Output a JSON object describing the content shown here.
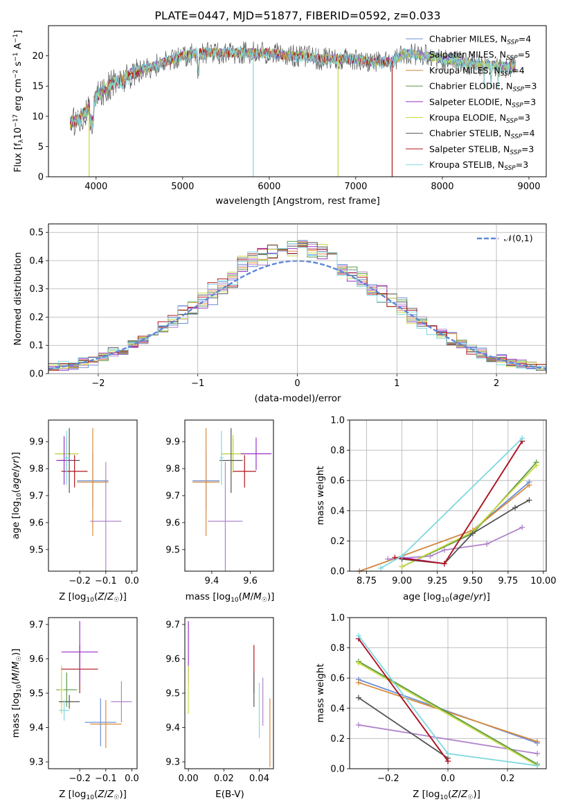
{
  "title": "PLATE=0447, MJD=51877, FIBERID=0592, z=0.033",
  "colors": {
    "chabrier_miles": "#6a8fd6",
    "salpeter_miles": "#b083c9",
    "kroupa_miles": "#d98a3a",
    "chabrier_elodie": "#5a9a48",
    "salpeter_elodie": "#9b30c8",
    "kroupa_elodie": "#c8d840",
    "chabrier_stelib": "#555555",
    "salpeter_stelib": "#b0151a",
    "kroupa_stelib": "#7fd8e0",
    "normal_curve": "#5b87d8"
  },
  "legend_spectrum": [
    {
      "base": "Chabrier MILES, N",
      "sub": "SSP",
      "tail": "=4",
      "color_key": "chabrier_miles"
    },
    {
      "base": "Salpeter MILES, N",
      "sub": "SSP",
      "tail": "=5",
      "color_key": "salpeter_miles"
    },
    {
      "base": "Kroupa MILES, N",
      "sub": "SSP",
      "tail": "=4",
      "color_key": "kroupa_miles"
    },
    {
      "base": "Chabrier ELODIE, N",
      "sub": "SSP",
      "tail": "=3",
      "color_key": "chabrier_elodie"
    },
    {
      "base": "Salpeter ELODIE, N",
      "sub": "SSP",
      "tail": "=3",
      "color_key": "salpeter_elodie"
    },
    {
      "base": "Kroupa ELODIE, N",
      "sub": "SSP",
      "tail": "=3",
      "color_key": "kroupa_elodie"
    },
    {
      "base": "Chabrier STELIB, N",
      "sub": "SSP",
      "tail": "=4",
      "color_key": "chabrier_stelib"
    },
    {
      "base": "Salpeter STELIB, N",
      "sub": "SSP",
      "tail": "=3",
      "color_key": "salpeter_stelib"
    },
    {
      "base": "Kroupa STELIB, N",
      "sub": "SSP",
      "tail": "=3",
      "color_key": "kroupa_stelib"
    }
  ],
  "legend_hist": {
    "label": "𝒩(0,1)"
  },
  "chart_data": [
    {
      "id": "spectrum",
      "type": "line",
      "xlabel": "wavelength [Angstrom, rest frame]",
      "ylabel": "Flux [f",
      "xlim": [
        3450,
        9200
      ],
      "ylim": [
        0,
        25
      ],
      "xticks": [
        4000,
        5000,
        6000,
        7000,
        8000,
        9000
      ],
      "yticks": [
        0,
        5,
        10,
        15,
        20
      ],
      "grid": false,
      "legend_position": "upper right",
      "continuum": {
        "x": [
          3700,
          3800,
          3900,
          4000,
          4100,
          4200,
          4300,
          4400,
          4500,
          4600,
          4700,
          4800,
          4900,
          5000,
          5200,
          5400,
          5600,
          5800,
          6000,
          6200,
          6400,
          6600,
          6800,
          7000,
          7200,
          7400,
          7600,
          7800,
          8000,
          8200,
          8400,
          8600,
          8850
        ],
        "y": [
          9,
          9.5,
          11,
          13,
          14.5,
          15.5,
          16,
          17,
          17.5,
          18,
          18.5,
          19,
          19.5,
          20,
          20.5,
          20.5,
          20.5,
          20.5,
          20.5,
          20,
          20,
          19.5,
          19.5,
          19.5,
          19,
          19,
          20.5,
          20,
          19.5,
          19,
          18.5,
          18.5,
          18
        ]
      },
      "spikes": [
        {
          "x": 3920,
          "y": 0,
          "color_key": "kroupa_elodie"
        },
        {
          "x": 5815,
          "y": 0,
          "color_key": "kroupa_stelib"
        },
        {
          "x": 6795,
          "y": 0,
          "color_key": "kroupa_elodie"
        },
        {
          "x": 7420,
          "y": 0,
          "color_key": "salpeter_stelib"
        }
      ]
    },
    {
      "id": "residual_hist",
      "type": "step",
      "xlabel": "(data-model)/error",
      "ylabel": "Normed distribution",
      "xlim": [
        -2.5,
        2.5
      ],
      "ylim": [
        0,
        0.53
      ],
      "xticks": [
        -2,
        -1,
        0,
        1,
        2
      ],
      "yticks": [
        0.0,
        0.1,
        0.2,
        0.3,
        0.4,
        0.5
      ],
      "grid": true,
      "bin_edges_start": -2.5,
      "bin_width": 0.1
    },
    {
      "id": "age_vs_Z",
      "type": "errorbar",
      "xlabel": "Z [log10(Z/Z☉)]",
      "ylabel": "age [log10(age/yr)]",
      "xlim": [
        -0.32,
        0.02
      ],
      "ylim": [
        9.42,
        9.98
      ],
      "xticks": [
        -0.2,
        -0.1,
        0.0
      ],
      "yticks": [
        9.5,
        9.6,
        9.7,
        9.8,
        9.9
      ],
      "grid": false,
      "points": [
        {
          "x": -0.25,
          "xerr": 0.045,
          "y": 9.855,
          "yerr": 0.06,
          "color_key": "chabrier_elodie"
        },
        {
          "x": -0.25,
          "xerr": 0.045,
          "y": 9.855,
          "yerr": 0.07,
          "color_key": "kroupa_elodie"
        },
        {
          "x": -0.24,
          "xerr": 0.04,
          "y": 9.83,
          "yerr": 0.12,
          "color_key": "chabrier_stelib"
        },
        {
          "x": -0.22,
          "xerr": 0.05,
          "y": 9.79,
          "yerr": 0.06,
          "color_key": "salpeter_stelib"
        },
        {
          "x": -0.26,
          "xerr": 0.03,
          "y": 9.83,
          "yerr": 0.09,
          "color_key": "salpeter_elodie"
        },
        {
          "x": -0.15,
          "xerr": 0.06,
          "y": 9.755,
          "yerr": 0.1,
          "color_key": "chabrier_miles"
        },
        {
          "x": -0.15,
          "xerr": 0.06,
          "y": 9.75,
          "yerr": 0.2,
          "color_key": "kroupa_miles"
        },
        {
          "x": -0.1,
          "xerr": 0.06,
          "y": 9.605,
          "yerr": 0.22,
          "color_key": "salpeter_miles"
        },
        {
          "x": -0.25,
          "xerr": 0.01,
          "y": 9.84,
          "yerr": 0.1,
          "color_key": "kroupa_stelib"
        }
      ]
    },
    {
      "id": "age_vs_mass",
      "type": "errorbar",
      "xlabel": "mass [log10(M/M☉)]",
      "ylabel": "",
      "xlim": [
        9.26,
        9.72
      ],
      "ylim": [
        9.42,
        9.98
      ],
      "xticks": [
        9.4,
        9.6
      ],
      "yticks": [
        9.5,
        9.6,
        9.7,
        9.8,
        9.9
      ],
      "grid": false,
      "points": [
        {
          "x": 9.37,
          "xerr": 0.07,
          "y": 9.755,
          "yerr": 0.1,
          "color_key": "chabrier_miles"
        },
        {
          "x": 9.37,
          "xerr": 0.07,
          "y": 9.75,
          "yerr": 0.2,
          "color_key": "kroupa_miles"
        },
        {
          "x": 9.47,
          "xerr": 0.09,
          "y": 9.605,
          "yerr": 0.22,
          "color_key": "salpeter_miles"
        },
        {
          "x": 9.51,
          "xerr": 0.06,
          "y": 9.855,
          "yerr": 0.06,
          "color_key": "chabrier_elodie"
        },
        {
          "x": 9.51,
          "xerr": 0.06,
          "y": 9.855,
          "yerr": 0.07,
          "color_key": "kroupa_elodie"
        },
        {
          "x": 9.63,
          "xerr": 0.08,
          "y": 9.855,
          "yerr": 0.06,
          "color_key": "salpeter_elodie"
        },
        {
          "x": 9.5,
          "xerr": 0.06,
          "y": 9.83,
          "yerr": 0.12,
          "color_key": "chabrier_stelib"
        },
        {
          "x": 9.57,
          "xerr": 0.06,
          "y": 9.79,
          "yerr": 0.06,
          "color_key": "salpeter_stelib"
        },
        {
          "x": 9.45,
          "xerr": 0.01,
          "y": 9.84,
          "yerr": 0.1,
          "color_key": "kroupa_stelib"
        }
      ]
    },
    {
      "id": "massweight_vs_age",
      "type": "line",
      "xlabel": "age [log10(age/yr)]",
      "ylabel": "mass weight",
      "xlim": [
        8.63,
        10.02
      ],
      "ylim": [
        0.0,
        1.0
      ],
      "xticks": [
        8.75,
        9.0,
        9.25,
        9.5,
        9.75,
        10.0
      ],
      "yticks": [
        0.0,
        0.2,
        0.4,
        0.6,
        0.8,
        1.0
      ],
      "grid": true,
      "series": [
        {
          "color_key": "chabrier_miles",
          "x": [
            8.7,
            9.0,
            9.5,
            9.9
          ],
          "y": [
            0.0,
            0.1,
            0.27,
            0.59
          ]
        },
        {
          "color_key": "kroupa_miles",
          "x": [
            8.7,
            9.0,
            9.5,
            9.9
          ],
          "y": [
            0.0,
            0.1,
            0.27,
            0.57
          ]
        },
        {
          "color_key": "salpeter_miles",
          "x": [
            8.9,
            9.2,
            9.3,
            9.6,
            9.85
          ],
          "y": [
            0.08,
            0.1,
            0.14,
            0.18,
            0.29
          ]
        },
        {
          "color_key": "chabrier_elodie",
          "x": [
            9.0,
            9.5,
            9.95
          ],
          "y": [
            0.03,
            0.25,
            0.72
          ]
        },
        {
          "color_key": "kroupa_elodie",
          "x": [
            9.0,
            9.5,
            9.95
          ],
          "y": [
            0.03,
            0.26,
            0.7
          ]
        },
        {
          "color_key": "salpeter_elodie",
          "x": [
            9.0,
            9.3,
            9.85
          ],
          "y": [
            0.09,
            0.05,
            0.86
          ]
        },
        {
          "color_key": "chabrier_stelib",
          "x": [
            9.0,
            9.3,
            9.5,
            9.8,
            9.9
          ],
          "y": [
            0.08,
            0.05,
            0.25,
            0.42,
            0.47
          ]
        },
        {
          "color_key": "salpeter_stelib",
          "x": [
            8.95,
            9.3,
            9.85
          ],
          "y": [
            0.09,
            0.05,
            0.86
          ]
        },
        {
          "color_key": "kroupa_stelib",
          "x": [
            8.85,
            9.0,
            9.85
          ],
          "y": [
            0.02,
            0.1,
            0.88
          ]
        }
      ]
    },
    {
      "id": "mass_vs_Z",
      "type": "errorbar",
      "xlabel": "Z [log10(Z/Z☉)]",
      "ylabel": "mass [log10(M/M☉)]",
      "xlim": [
        -0.32,
        0.02
      ],
      "ylim": [
        9.28,
        9.72
      ],
      "xticks": [
        -0.2,
        -0.1,
        0.0
      ],
      "yticks": [
        9.3,
        9.4,
        9.5,
        9.6,
        9.7
      ],
      "grid": false,
      "points": [
        {
          "x": -0.25,
          "xerr": 0.04,
          "y": 9.51,
          "yerr": 0.05,
          "color_key": "chabrier_elodie"
        },
        {
          "x": -0.27,
          "xerr": 0.01,
          "y": 9.51,
          "yerr": 0.07,
          "color_key": "kroupa_elodie"
        },
        {
          "x": -0.24,
          "xerr": 0.04,
          "y": 9.475,
          "yerr": 0.02,
          "color_key": "chabrier_stelib"
        },
        {
          "x": -0.2,
          "xerr": 0.07,
          "y": 9.57,
          "yerr": 0.07,
          "color_key": "salpeter_stelib"
        },
        {
          "x": -0.2,
          "xerr": 0.07,
          "y": 9.62,
          "yerr": 0.09,
          "color_key": "salpeter_elodie"
        },
        {
          "x": -0.26,
          "xerr": 0.02,
          "y": 9.45,
          "yerr": 0.03,
          "color_key": "kroupa_stelib"
        },
        {
          "x": -0.12,
          "xerr": 0.06,
          "y": 9.415,
          "yerr": 0.07,
          "color_key": "chabrier_miles"
        },
        {
          "x": -0.1,
          "xerr": 0.06,
          "y": 9.41,
          "yerr": 0.07,
          "color_key": "kroupa_miles"
        },
        {
          "x": -0.04,
          "xerr": 0.04,
          "y": 9.475,
          "yerr": 0.06,
          "color_key": "salpeter_miles"
        }
      ]
    },
    {
      "id": "mass_vs_ebv",
      "type": "errorbar",
      "xlabel": "E(B-V)",
      "ylabel": "",
      "xlim": [
        -0.002,
        0.048
      ],
      "ylim": [
        9.28,
        9.72
      ],
      "xticks": [
        0.0,
        0.02,
        0.04
      ],
      "yticks": [
        9.3,
        9.4,
        9.5,
        9.6,
        9.7
      ],
      "grid": false,
      "points": [
        {
          "x": 0.0,
          "xerr": 0.0,
          "y": 9.62,
          "yerr": 0.09,
          "color_key": "salpeter_elodie"
        },
        {
          "x": 0.0,
          "xerr": 0.0,
          "y": 9.51,
          "yerr": 0.07,
          "color_key": "kroupa_elodie"
        },
        {
          "x": 0.037,
          "xerr": 0.0,
          "y": 9.57,
          "yerr": 0.07,
          "color_key": "salpeter_stelib"
        },
        {
          "x": 0.037,
          "xerr": 0.0,
          "y": 9.51,
          "yerr": 0.05,
          "color_key": "chabrier_stelib"
        },
        {
          "x": 0.04,
          "xerr": 0.0,
          "y": 9.45,
          "yerr": 0.08,
          "color_key": "kroupa_stelib"
        },
        {
          "x": 0.042,
          "xerr": 0.0,
          "y": 9.475,
          "yerr": 0.07,
          "color_key": "salpeter_miles"
        },
        {
          "x": 0.046,
          "xerr": 0.0,
          "y": 9.385,
          "yerr": 0.1,
          "color_key": "kroupa_miles"
        }
      ]
    },
    {
      "id": "massweight_vs_Z",
      "type": "line",
      "xlabel": "Z [log10(Z/Z☉)]",
      "ylabel": "mass weight",
      "xlim": [
        -0.33,
        0.33
      ],
      "ylim": [
        0.0,
        1.0
      ],
      "xticks": [
        -0.2,
        0.0,
        0.2
      ],
      "yticks": [
        0.0,
        0.2,
        0.4,
        0.6,
        0.8,
        1.0
      ],
      "grid": true,
      "series": [
        {
          "color_key": "chabrier_miles",
          "x": [
            -0.3,
            0.3
          ],
          "y": [
            0.59,
            0.17
          ]
        },
        {
          "color_key": "kroupa_miles",
          "x": [
            -0.3,
            0.3
          ],
          "y": [
            0.57,
            0.18
          ]
        },
        {
          "color_key": "salpeter_miles",
          "x": [
            -0.3,
            0.3
          ],
          "y": [
            0.29,
            0.1
          ]
        },
        {
          "color_key": "chabrier_elodie",
          "x": [
            -0.3,
            0.3
          ],
          "y": [
            0.71,
            0.03
          ]
        },
        {
          "color_key": "kroupa_elodie",
          "x": [
            -0.3,
            0.3
          ],
          "y": [
            0.7,
            0.02
          ]
        },
        {
          "color_key": "salpeter_elodie",
          "x": [
            -0.3,
            0.0
          ],
          "y": [
            0.86,
            0.05
          ]
        },
        {
          "color_key": "chabrier_stelib",
          "x": [
            -0.3,
            0.0
          ],
          "y": [
            0.47,
            0.07
          ]
        },
        {
          "color_key": "salpeter_stelib",
          "x": [
            -0.3,
            0.0
          ],
          "y": [
            0.86,
            0.05
          ]
        },
        {
          "color_key": "kroupa_stelib",
          "x": [
            -0.3,
            0.0,
            0.3
          ],
          "y": [
            0.88,
            0.1,
            0.02
          ]
        }
      ]
    }
  ]
}
